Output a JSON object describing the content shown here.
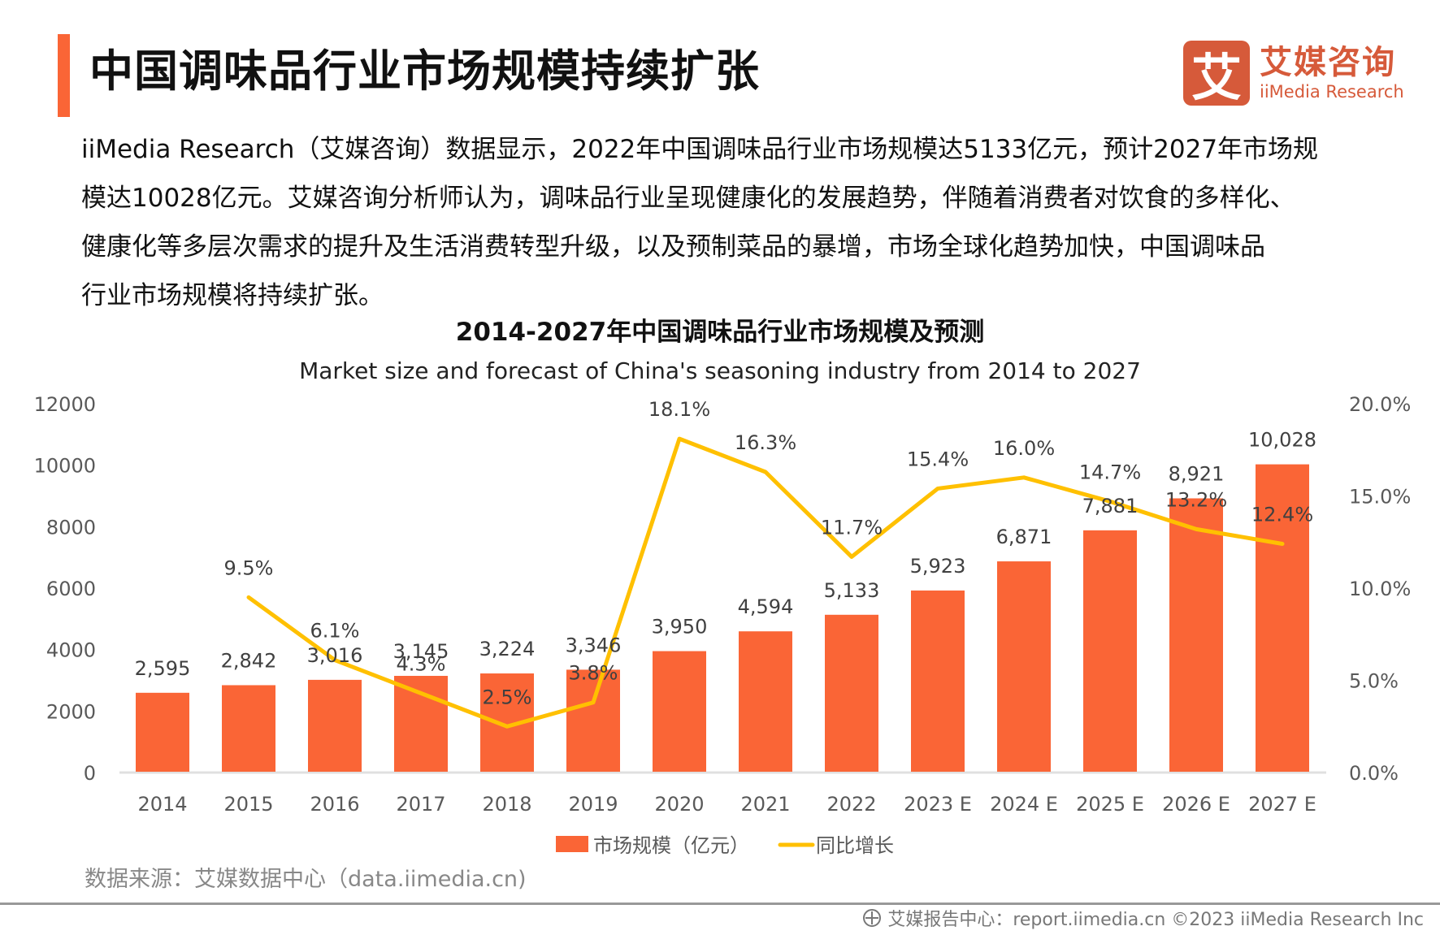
{
  "header": {
    "title": "中国调味品行业市场规模持续扩张",
    "accent_color": "#fa6536"
  },
  "logo": {
    "mark": "艾",
    "name_cn": "艾媒咨询",
    "name_en": "iiMedia Research",
    "color": "#d65a3a"
  },
  "intro": {
    "lines": [
      "iiMedia Research（艾媒咨询）数据显示，2022年中国调味品行业市场规模达5133亿元，预计2027年市场规",
      "模达10028亿元。艾媒咨询分析师认为，调味品行业呈现健康化的发展趋势，伴随着消费者对饮食的多样化、",
      "健康化等多层次需求的提升及生活消费转型升级，以及预制菜品的暴增，市场全球化趋势加快，中国调味品",
      "行业市场规模将持续扩张。"
    ]
  },
  "chart_data": {
    "type": "bar",
    "title": "2014-2027年中国调味品行业市场规模及预测",
    "subtitle": "Market size and forecast of China's seasoning industry from 2014 to 2027",
    "categories": [
      "2014",
      "2015",
      "2016",
      "2017",
      "2018",
      "2019",
      "2020",
      "2021",
      "2022",
      "2023 E",
      "2024 E",
      "2025 E",
      "2026 E",
      "2027 E"
    ],
    "series": [
      {
        "name": "市场规模（亿元）",
        "type": "bar",
        "axis": "left",
        "color": "#fa6536",
        "values": [
          2595,
          2842,
          3016,
          3145,
          3224,
          3346,
          3950,
          4594,
          5133,
          5923,
          6871,
          7881,
          8921,
          10028
        ],
        "labels": [
          "2,595",
          "2,842",
          "3,016",
          "3,145",
          "3,224",
          "3,346",
          "3,950",
          "4,594",
          "5,133",
          "5,923",
          "6,871",
          "7,881",
          "8,921",
          "10,028"
        ]
      },
      {
        "name": "同比增长",
        "type": "line",
        "axis": "right",
        "color": "#ffc000",
        "values": [
          null,
          9.5,
          6.1,
          4.3,
          2.5,
          3.8,
          18.1,
          16.3,
          11.7,
          15.4,
          16.0,
          14.7,
          13.2,
          12.4
        ],
        "labels": [
          "",
          "9.5%",
          "6.1%",
          "4.3%",
          "2.5%",
          "3.8%",
          "18.1%",
          "16.3%",
          "11.7%",
          "15.4%",
          "16.0%",
          "14.7%",
          "13.2%",
          "12.4%"
        ]
      }
    ],
    "y_left": {
      "range": [
        0,
        12000
      ],
      "ticks": [
        "0",
        "2000",
        "4000",
        "6000",
        "8000",
        "10000",
        "12000"
      ]
    },
    "y_right": {
      "range": [
        0,
        20
      ],
      "unit": "%",
      "ticks": [
        "0.0%",
        "5.0%",
        "10.0%",
        "15.0%",
        "20.0%"
      ]
    },
    "xlabel": "",
    "ylabel": "",
    "grid": false,
    "legend": "bottom-center"
  },
  "source": "数据来源：艾媒数据中心（data.iimedia.cn)",
  "footer": {
    "text": "艾媒报告中心：report.iimedia.cn   ©2023  iiMedia Research  Inc"
  }
}
